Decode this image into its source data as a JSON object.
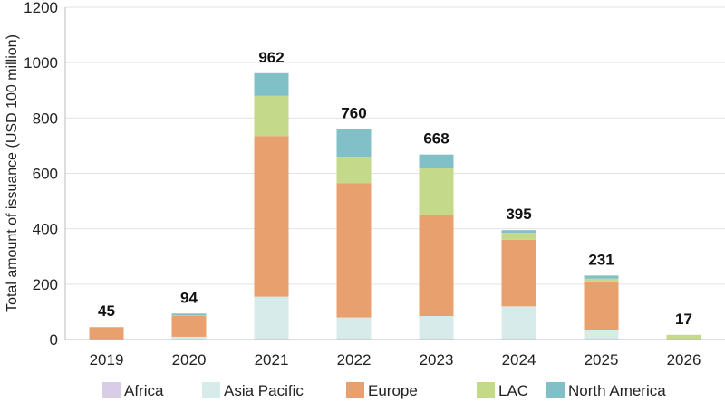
{
  "chart_data": {
    "type": "bar",
    "stacked": true,
    "title": "",
    "xlabel": "",
    "ylabel": "Total amount of issuance (USD 100 million)",
    "ylim": [
      0,
      1200
    ],
    "yticks": [
      0,
      200,
      400,
      600,
      800,
      1000,
      1200
    ],
    "grid": "horizontal",
    "legend_position": "bottom",
    "categories": [
      "2019",
      "2020",
      "2021",
      "2022",
      "2023",
      "2024",
      "2025",
      "2026"
    ],
    "totals": [
      45,
      94,
      962,
      760,
      668,
      395,
      231,
      17
    ],
    "series": [
      {
        "name": "Africa",
        "color": "#d9cce6",
        "values": [
          0,
          0,
          0,
          0,
          0,
          0,
          0,
          0
        ]
      },
      {
        "name": "Asia Pacific",
        "color": "#d6ebea",
        "values": [
          0,
          10,
          155,
          80,
          85,
          120,
          35,
          0
        ]
      },
      {
        "name": "Europe",
        "color": "#e8a06e",
        "values": [
          45,
          75,
          580,
          485,
          365,
          240,
          175,
          0
        ]
      },
      {
        "name": "LAC",
        "color": "#c5d98a",
        "values": [
          0,
          2,
          145,
          95,
          170,
          25,
          10,
          17
        ]
      },
      {
        "name": "North America",
        "color": "#82c0c8",
        "values": [
          0,
          7,
          82,
          100,
          48,
          10,
          11,
          0
        ]
      }
    ]
  }
}
